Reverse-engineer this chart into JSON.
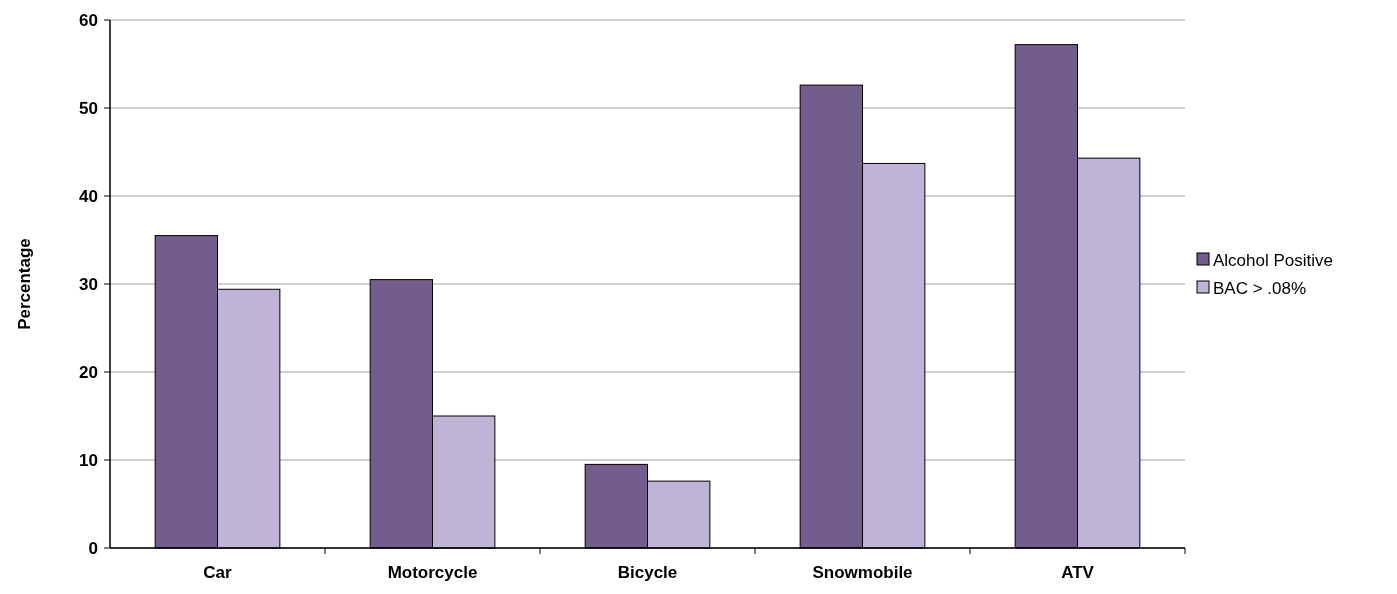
{
  "chart_data": {
    "type": "bar",
    "ylabel": "Percentage",
    "categories": [
      "Car",
      "Motorcycle",
      "Bicycle",
      "Snowmobile",
      "ATV"
    ],
    "series": [
      {
        "name": "Alcohol Positive",
        "color": "#735c8e",
        "values": [
          35.5,
          30.5,
          9.5,
          52.6,
          57.2
        ]
      },
      {
        "name": "BAC > .08%",
        "color": "#bfb3d6",
        "values": [
          29.4,
          15,
          7.6,
          43.7,
          44.3
        ]
      }
    ],
    "ylim": [
      0,
      60
    ],
    "yticks": [
      0,
      10,
      20,
      30,
      40,
      50,
      60
    ],
    "grid": "y",
    "legend": "right"
  }
}
